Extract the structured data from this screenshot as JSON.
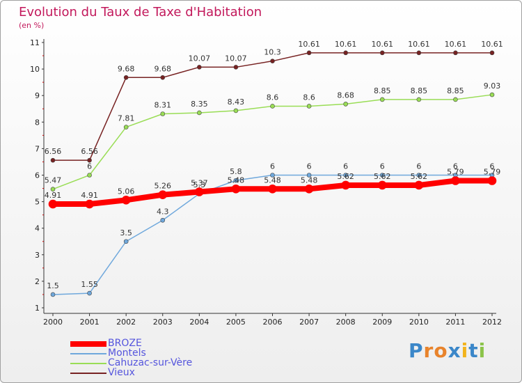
{
  "chart_data": {
    "type": "line",
    "title": "Evolution du Taux de Taxe d'Habitation",
    "unit_label": "(en %)",
    "x": [
      "2000",
      "2001",
      "2002",
      "2003",
      "2004",
      "2005",
      "2006",
      "2007",
      "2008",
      "2009",
      "2010",
      "2011",
      "2012"
    ],
    "ylim": [
      1,
      11
    ],
    "yticks": [
      "1",
      "2",
      "3",
      "4",
      "5",
      "6",
      "7",
      "8",
      "9",
      "10",
      "11"
    ],
    "grid": false,
    "legend_position": "bottom-left",
    "series": [
      {
        "name": "BROZE",
        "color": "#ff0000",
        "width": 8,
        "values": [
          4.91,
          4.91,
          5.06,
          5.26,
          5.37,
          5.48,
          5.48,
          5.48,
          5.62,
          5.62,
          5.62,
          5.79,
          5.79
        ],
        "labels": [
          "4.91",
          "4.91",
          "5.06",
          "5.26",
          "5.37",
          "5.48",
          "5.48",
          "5.48",
          "5.62",
          "5.62",
          "5.62",
          "5.79",
          "5.79"
        ]
      },
      {
        "name": "Montels",
        "color": "#6fa8dc",
        "width": 1.5,
        "values": [
          1.5,
          1.55,
          3.5,
          4.3,
          5.3,
          5.8,
          6,
          6,
          6,
          6,
          6,
          6,
          6
        ],
        "labels": [
          "1.5",
          "1.55",
          "3.5",
          "4.3",
          "5.3",
          "5.8",
          "6",
          "6",
          "6",
          "6",
          "6",
          "6",
          "6"
        ]
      },
      {
        "name": "Cahuzac-sur-Vère",
        "color": "#99dd55",
        "width": 1.5,
        "values": [
          5.47,
          6,
          7.81,
          8.31,
          8.35,
          8.43,
          8.6,
          8.6,
          8.68,
          8.85,
          8.85,
          8.85,
          9.03
        ],
        "labels": [
          "5.47",
          "6",
          "7.81",
          "8.31",
          "8.35",
          "8.43",
          "8.6",
          "8.6",
          "8.68",
          "8.85",
          "8.85",
          "8.85",
          "9.03"
        ]
      },
      {
        "name": "Vieux",
        "color": "#772222",
        "width": 1.5,
        "values": [
          6.56,
          6.56,
          9.68,
          9.68,
          10.07,
          10.07,
          10.3,
          10.61,
          10.61,
          10.61,
          10.61,
          10.61,
          10.61
        ],
        "labels": [
          "6.56",
          "6.56",
          "9.68",
          "9.68",
          "10.07",
          "10.07",
          "10.3",
          "10.61",
          "10.61",
          "10.61",
          "10.61",
          "10.61",
          "10.61"
        ]
      }
    ]
  },
  "logo": {
    "text": "Proxiti",
    "letters": [
      "P",
      "r",
      "o",
      "x",
      "i",
      "t",
      "i"
    ],
    "colors": [
      "#3b87c9",
      "#e8832b",
      "#e8832b",
      "#3b87c9",
      "#f2b31c",
      "#3b87c9",
      "#8bc34a"
    ]
  }
}
